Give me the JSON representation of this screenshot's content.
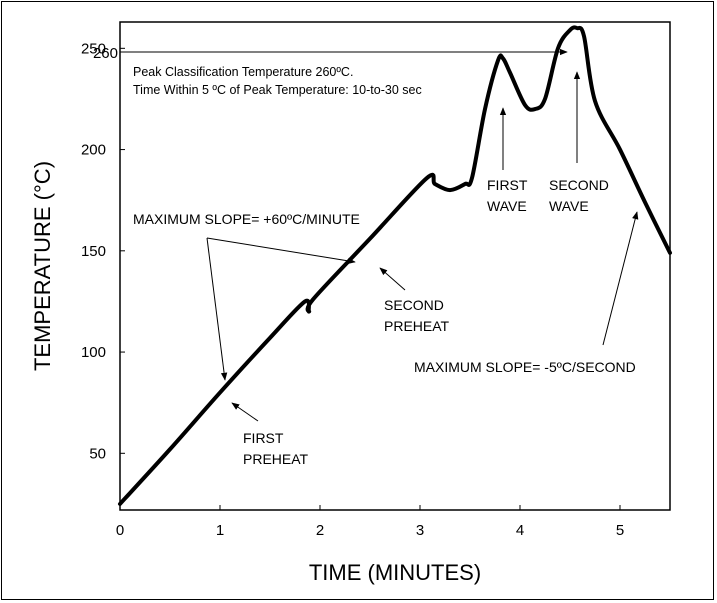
{
  "chart_data": {
    "type": "line",
    "xlabel": "TIME (MINUTES)",
    "ylabel": "TEMPERATURE (°C)",
    "xlim": [
      0,
      5.5
    ],
    "ylim": [
      22,
      263
    ],
    "x_ticks": [
      0,
      1,
      2,
      3,
      4,
      5
    ],
    "y_ticks": [
      50,
      100,
      150,
      200,
      250
    ],
    "y_ticks_labeled": [
      "50",
      "100",
      "150",
      "200",
      "250"
    ],
    "x_ticks_labeled": [
      "0",
      "1",
      "2",
      "3",
      "4",
      "5"
    ],
    "peak_marker": {
      "label": "260",
      "value": 260
    },
    "series": [
      {
        "x": [
          0,
          0.5,
          1.0,
          1.5,
          1.85,
          1.89,
          1.93,
          2.5,
          3.07,
          3.15,
          3.3,
          3.45,
          3.52,
          3.65,
          3.78,
          3.83,
          3.9,
          4.05,
          4.15,
          4.25,
          4.38,
          4.5,
          4.57,
          4.64,
          4.75,
          5.0,
          5.25,
          5.5
        ],
        "y": [
          25,
          52,
          80,
          107,
          125,
          120,
          126,
          156,
          186,
          183,
          180,
          183,
          186,
          220,
          244,
          245,
          238,
          222,
          220,
          225,
          250,
          259,
          260,
          256,
          224,
          200,
          174,
          149
        ]
      }
    ],
    "annotations": {
      "note_line1": "Peak Classification Temperature 260ºC.",
      "note_line2": "Time Within 5 ºC of Peak Temperature: 10-to-30 sec",
      "max_slope_up": "MAXIMUM SLOPE= +60ºC/MINUTE",
      "max_slope_down": "MAXIMUM SLOPE= -5ºC/SECOND",
      "first_preheat_l1": "FIRST",
      "first_preheat_l2": "PREHEAT",
      "second_preheat_l1": "SECOND",
      "second_preheat_l2": "PREHEAT",
      "first_wave_l1": "FIRST",
      "first_wave_l2": "WAVE",
      "second_wave_l1": "SECOND",
      "second_wave_l2": "WAVE"
    }
  }
}
